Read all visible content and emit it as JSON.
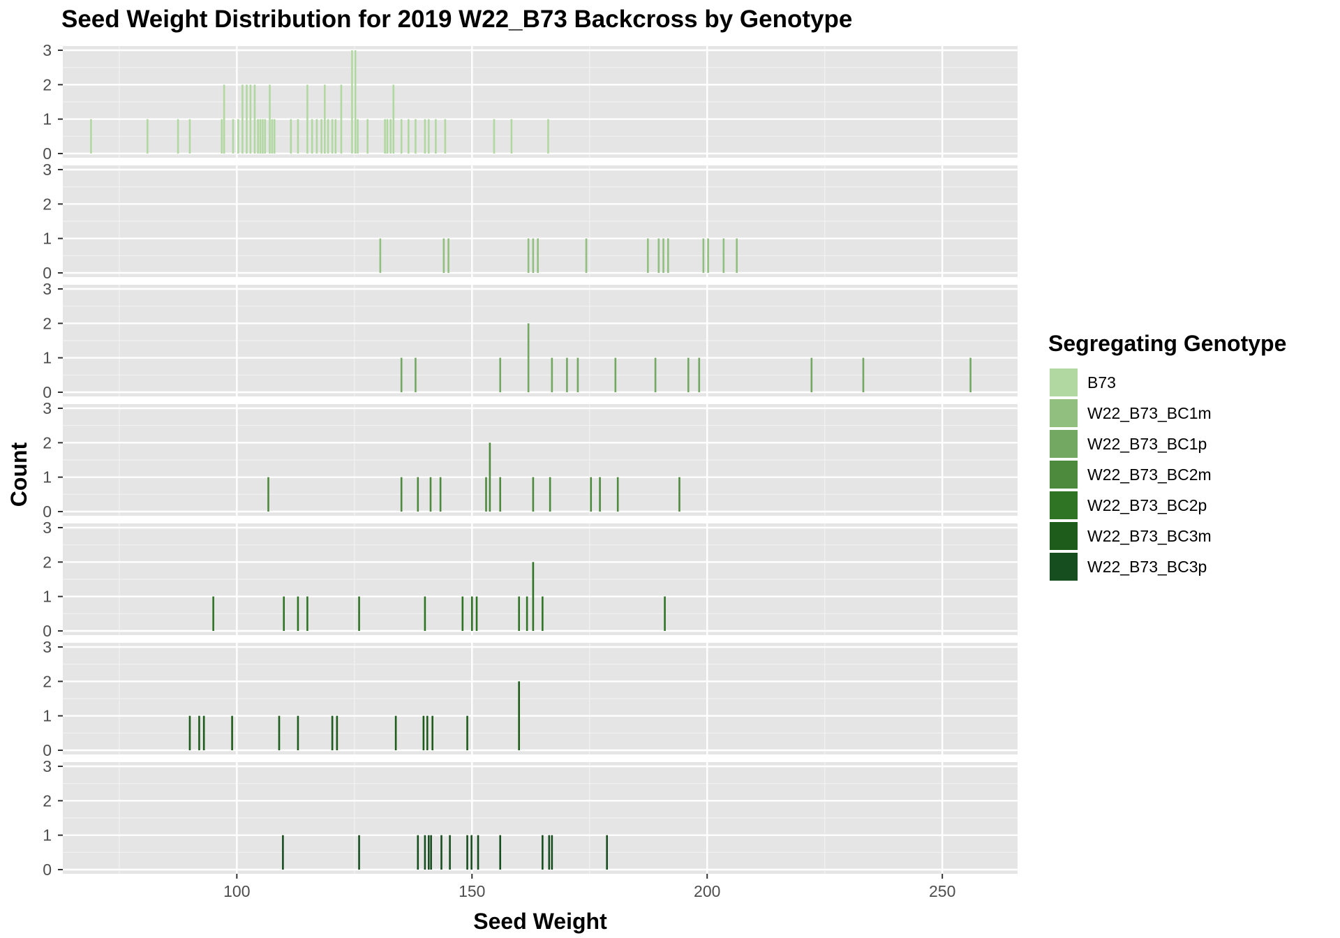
{
  "chart_data": {
    "type": "bar",
    "title": "Seed Weight Distribution for 2019 W22_B73 Backcross by Genotype",
    "xlabel": "Seed Weight",
    "ylabel": "Count",
    "xlim": [
      63,
      266
    ],
    "ylim": [
      0,
      3
    ],
    "x_ticks": [
      100,
      150,
      200,
      250
    ],
    "y_ticks": [
      0,
      1,
      2,
      3
    ],
    "grid": true,
    "legend": {
      "title": "Segregating Genotype",
      "placement": "right"
    },
    "series": [
      {
        "name": "B73",
        "color": "#b2d8a2",
        "points": [
          [
            69,
            1
          ],
          [
            81,
            1
          ],
          [
            87.5,
            1
          ],
          [
            90,
            1
          ],
          [
            96.8,
            1
          ],
          [
            97.3,
            2
          ],
          [
            99.2,
            1
          ],
          [
            100.3,
            1
          ],
          [
            101.2,
            2
          ],
          [
            102.1,
            2
          ],
          [
            102.9,
            2
          ],
          [
            103.8,
            2
          ],
          [
            104.5,
            1
          ],
          [
            105,
            1
          ],
          [
            105.5,
            1
          ],
          [
            106,
            1
          ],
          [
            107,
            2
          ],
          [
            107.5,
            1
          ],
          [
            108,
            1
          ],
          [
            111.5,
            1
          ],
          [
            113,
            1
          ],
          [
            115,
            2
          ],
          [
            116,
            1
          ],
          [
            117,
            1
          ],
          [
            118,
            1
          ],
          [
            118.7,
            2
          ],
          [
            119.4,
            1
          ],
          [
            120.3,
            1
          ],
          [
            121,
            1
          ],
          [
            122.2,
            2
          ],
          [
            124.5,
            3
          ],
          [
            125.2,
            3
          ],
          [
            125.7,
            1
          ],
          [
            127.8,
            1
          ],
          [
            131.5,
            1
          ],
          [
            132,
            1
          ],
          [
            132.7,
            1
          ],
          [
            133.3,
            2
          ],
          [
            135,
            1
          ],
          [
            136.5,
            1
          ],
          [
            138,
            1
          ],
          [
            140,
            1
          ],
          [
            140.8,
            1
          ],
          [
            142.3,
            1
          ],
          [
            144.3,
            1
          ],
          [
            154.7,
            1
          ],
          [
            158.4,
            1
          ],
          [
            166.2,
            1
          ]
        ]
      },
      {
        "name": "W22_B73_BC1m",
        "color": "#91bf7f",
        "points": [
          [
            130.5,
            1
          ],
          [
            144,
            1
          ],
          [
            145,
            1
          ],
          [
            162,
            1
          ],
          [
            163,
            1
          ],
          [
            164,
            1
          ],
          [
            174.3,
            1
          ],
          [
            187.4,
            1
          ],
          [
            189.7,
            1
          ],
          [
            190.7,
            1
          ],
          [
            191.7,
            1
          ],
          [
            199.2,
            1
          ],
          [
            200.2,
            1
          ],
          [
            203.5,
            1
          ],
          [
            206.3,
            1
          ]
        ]
      },
      {
        "name": "W22_B73_BC1p",
        "color": "#72a862",
        "points": [
          [
            135,
            1
          ],
          [
            138,
            1
          ],
          [
            156,
            1
          ],
          [
            162,
            2
          ],
          [
            167,
            1
          ],
          [
            170.2,
            1
          ],
          [
            172.5,
            1
          ],
          [
            180.5,
            1
          ],
          [
            189,
            1
          ],
          [
            196,
            1
          ],
          [
            198.3,
            1
          ],
          [
            222.2,
            1
          ],
          [
            233.2,
            1
          ],
          [
            256,
            1
          ]
        ]
      },
      {
        "name": "W22_B73_BC2m",
        "color": "#4e8a3e",
        "points": [
          [
            106.7,
            1
          ],
          [
            135,
            1
          ],
          [
            138.5,
            1
          ],
          [
            141.2,
            1
          ],
          [
            143.3,
            1
          ],
          [
            153,
            1
          ],
          [
            153.8,
            2
          ],
          [
            156,
            1
          ],
          [
            163,
            1
          ],
          [
            166.6,
            1
          ],
          [
            175.3,
            1
          ],
          [
            177.2,
            1
          ],
          [
            181,
            1
          ],
          [
            194.1,
            1
          ]
        ]
      },
      {
        "name": "W22_B73_BC2p",
        "color": "#2e7424",
        "points": [
          [
            95,
            1
          ],
          [
            110,
            1
          ],
          [
            113,
            1
          ],
          [
            115,
            1
          ],
          [
            126,
            1
          ],
          [
            140,
            1
          ],
          [
            148,
            1
          ],
          [
            150,
            1
          ],
          [
            151,
            1
          ],
          [
            160,
            1
          ],
          [
            161.7,
            1
          ],
          [
            163,
            2
          ],
          [
            165,
            1
          ],
          [
            191,
            1
          ]
        ]
      },
      {
        "name": "W22_B73_BC3m",
        "color": "#1e5c1b",
        "points": [
          [
            90,
            1
          ],
          [
            92,
            1
          ],
          [
            93,
            1
          ],
          [
            99,
            1
          ],
          [
            109,
            1
          ],
          [
            113,
            1
          ],
          [
            120.3,
            1
          ],
          [
            121.3,
            1
          ],
          [
            133.8,
            1
          ],
          [
            139.7,
            1
          ],
          [
            140.5,
            1
          ],
          [
            141.6,
            1
          ],
          [
            149,
            1
          ],
          [
            160,
            2
          ]
        ]
      },
      {
        "name": "W22_B73_BC3p",
        "color": "#174e1f",
        "points": [
          [
            109.8,
            1
          ],
          [
            126,
            1
          ],
          [
            138.5,
            1
          ],
          [
            140,
            1
          ],
          [
            140.8,
            1
          ],
          [
            141.3,
            1
          ],
          [
            143.5,
            1
          ],
          [
            145.3,
            1
          ],
          [
            149,
            1
          ],
          [
            149.9,
            1
          ],
          [
            151.3,
            1
          ],
          [
            156,
            1
          ],
          [
            165,
            1
          ],
          [
            166.4,
            1
          ],
          [
            167,
            1
          ],
          [
            178.7,
            1
          ]
        ]
      }
    ]
  }
}
